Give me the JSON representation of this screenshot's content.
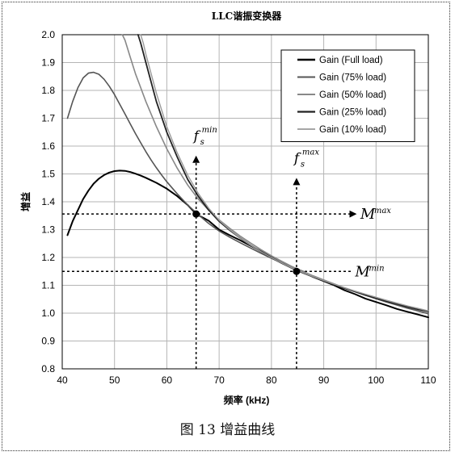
{
  "figure_caption": "图 13 增益曲线",
  "chart_data": {
    "type": "line",
    "title": "LLC谐振变换器",
    "xlabel": "频率 (kHz)",
    "ylabel": "增益",
    "xlim": [
      40,
      110
    ],
    "ylim": [
      0.8,
      2.0
    ],
    "xticks": [
      40,
      50,
      60,
      70,
      80,
      90,
      100,
      110
    ],
    "yticks": [
      "0.8",
      "0.9",
      "1.0",
      "1.1",
      "1.2",
      "1.3",
      "1.4",
      "1.5",
      "1.6",
      "1.7",
      "1.8",
      "1.9",
      "2.0"
    ],
    "grid": true,
    "legend_position": "top-right",
    "series": [
      {
        "name": "Gain (Full load)",
        "color": "#000000",
        "width": 2.0,
        "x": [
          41,
          42,
          43,
          44,
          45,
          46,
          47,
          48,
          49,
          50,
          51,
          52,
          53,
          54,
          55,
          56,
          58,
          60,
          62,
          64,
          65.6,
          66,
          68,
          70,
          72,
          74,
          76,
          78,
          80,
          82,
          84,
          86,
          88,
          90,
          92,
          94,
          96,
          98,
          100,
          102,
          104,
          106,
          108,
          110
        ],
        "y": [
          1.28,
          1.33,
          1.37,
          1.41,
          1.44,
          1.465,
          1.483,
          1.496,
          1.505,
          1.51,
          1.512,
          1.511,
          1.507,
          1.501,
          1.494,
          1.486,
          1.468,
          1.447,
          1.42,
          1.388,
          1.356,
          1.352,
          1.332,
          1.3,
          1.28,
          1.262,
          1.242,
          1.222,
          1.2,
          1.18,
          1.165,
          1.15,
          1.13,
          1.115,
          1.1,
          1.082,
          1.068,
          1.052,
          1.04,
          1.028,
          1.015,
          1.005,
          0.995,
          0.985
        ]
      },
      {
        "name": "Gain (75% load)",
        "color": "#555555",
        "width": 1.6,
        "x": [
          41,
          42,
          43,
          44,
          45,
          46,
          47,
          48,
          49,
          50,
          51,
          52,
          53,
          54,
          55,
          56,
          57,
          58,
          59,
          60,
          62,
          64,
          66,
          68,
          70,
          72,
          74,
          76,
          78,
          80,
          82,
          84,
          86,
          88,
          90,
          92,
          94,
          96,
          98,
          100,
          102,
          104,
          106,
          108,
          110
        ],
        "y": [
          1.7,
          1.76,
          1.81,
          1.845,
          1.862,
          1.865,
          1.858,
          1.84,
          1.815,
          1.785,
          1.75,
          1.715,
          1.68,
          1.645,
          1.612,
          1.58,
          1.55,
          1.522,
          1.496,
          1.472,
          1.428,
          1.388,
          1.354,
          1.322,
          1.295,
          1.273,
          1.253,
          1.234,
          1.215,
          1.197,
          1.18,
          1.163,
          1.147,
          1.132,
          1.118,
          1.104,
          1.09,
          1.077,
          1.064,
          1.052,
          1.04,
          1.029,
          1.018,
          1.008,
          0.998
        ]
      },
      {
        "name": "Gain (50% load)",
        "color": "#888888",
        "width": 1.6,
        "x": [
          51.5,
          52,
          53,
          54,
          55,
          56,
          58,
          60,
          62,
          64,
          66,
          68,
          70,
          72,
          74,
          76,
          78,
          80,
          82,
          84,
          86,
          88,
          90,
          92,
          94,
          96,
          98,
          100,
          102,
          104,
          106,
          108,
          110
        ],
        "y": [
          2.0,
          1.98,
          1.92,
          1.86,
          1.81,
          1.76,
          1.67,
          1.59,
          1.52,
          1.46,
          1.41,
          1.37,
          1.335,
          1.305,
          1.277,
          1.252,
          1.228,
          1.206,
          1.186,
          1.167,
          1.15,
          1.134,
          1.119,
          1.105,
          1.091,
          1.078,
          1.066,
          1.054,
          1.043,
          1.033,
          1.023,
          1.014,
          1.005
        ]
      },
      {
        "name": "Gain (25% load)",
        "color": "#222222",
        "width": 1.8,
        "x": [
          54.5,
          55,
          56,
          58,
          60,
          62,
          64,
          66,
          68,
          70,
          72,
          74,
          76,
          78,
          80,
          82,
          84,
          86,
          88,
          90,
          92,
          94,
          96,
          98,
          100,
          102,
          104,
          106,
          108,
          110
        ],
        "y": [
          2.0,
          1.97,
          1.9,
          1.76,
          1.65,
          1.56,
          1.48,
          1.42,
          1.37,
          1.33,
          1.298,
          1.27,
          1.244,
          1.221,
          1.199,
          1.179,
          1.161,
          1.145,
          1.13,
          1.116,
          1.102,
          1.089,
          1.077,
          1.065,
          1.054,
          1.043,
          1.033,
          1.023,
          1.014,
          1.006
        ]
      },
      {
        "name": "Gain (10% load)",
        "color": "#9a9a9a",
        "width": 1.4,
        "x": [
          55,
          55.5,
          56,
          58,
          60,
          62,
          64,
          66,
          68,
          70,
          72,
          74,
          76,
          78,
          80,
          82,
          84,
          86,
          88,
          90,
          92,
          94,
          96,
          98,
          100,
          102,
          104,
          106,
          108,
          110
        ],
        "y": [
          2.0,
          1.97,
          1.93,
          1.79,
          1.67,
          1.575,
          1.495,
          1.43,
          1.377,
          1.334,
          1.3,
          1.27,
          1.244,
          1.221,
          1.199,
          1.18,
          1.162,
          1.146,
          1.131,
          1.117,
          1.104,
          1.091,
          1.079,
          1.068,
          1.057,
          1.046,
          1.036,
          1.026,
          1.017,
          1.008
        ]
      }
    ],
    "guides": [
      {
        "type": "hline",
        "y": 1.356,
        "x_from": 40,
        "x_to": 96
      },
      {
        "type": "hline",
        "y": 1.15,
        "x_from": 40,
        "x_to": 95.5
      },
      {
        "type": "vline",
        "x": 65.6,
        "y_from": 0.8,
        "y_to": 1.56
      },
      {
        "type": "vline",
        "x": 84.8,
        "y_from": 0.8,
        "y_to": 1.48
      }
    ],
    "points": [
      {
        "x": 65.6,
        "y": 1.356
      },
      {
        "x": 84.8,
        "y": 1.15
      }
    ],
    "annotations": [
      {
        "base": "f",
        "sub": "s",
        "sup": "min",
        "x": 65.6,
        "y": 1.62
      },
      {
        "base": "f",
        "sub": "s",
        "sup": "max",
        "x": 84.8,
        "y": 1.54
      },
      {
        "base": "M",
        "sup": "max",
        "x": 97,
        "y": 1.356
      },
      {
        "base": "M",
        "sup": "min",
        "x": 96,
        "y": 1.15
      }
    ]
  }
}
